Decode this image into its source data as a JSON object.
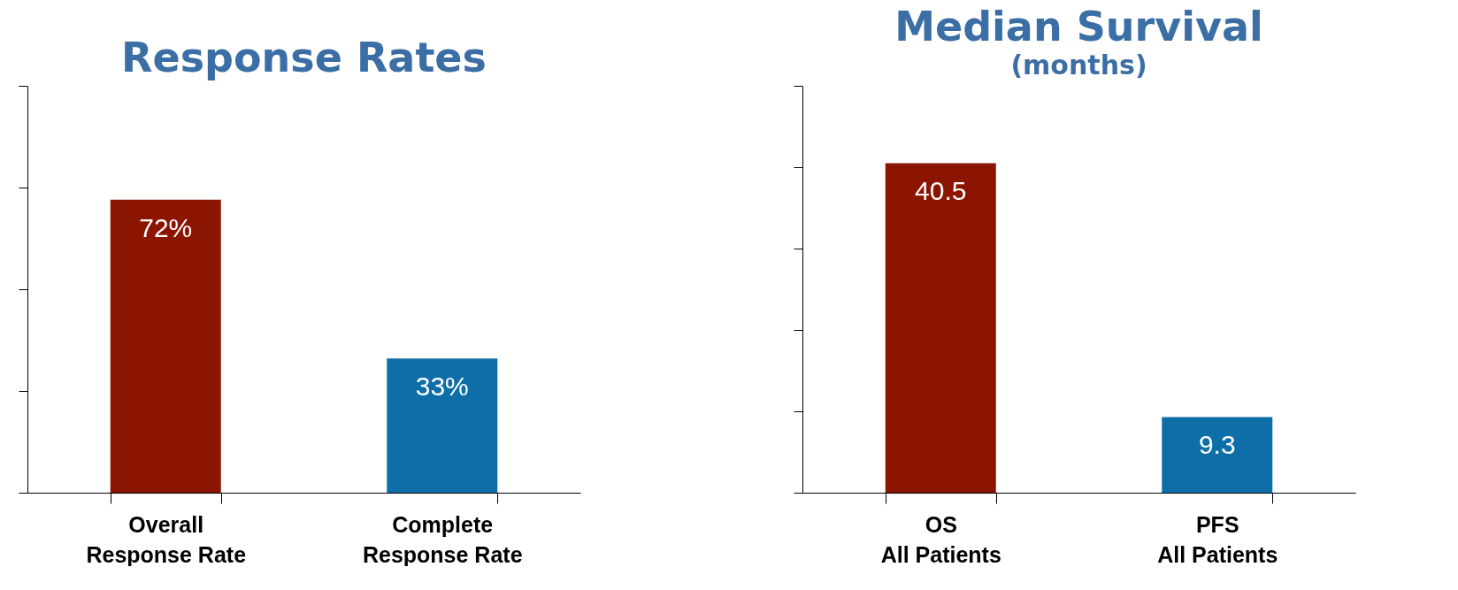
{
  "chart_data": [
    {
      "type": "bar",
      "title": "Response Rates",
      "categories": [
        "Overall\nResponse Rate",
        "Complete\nResponse Rate"
      ],
      "values": [
        72,
        33
      ],
      "colors": [
        "#8b1500",
        "#0e6fa8"
      ],
      "ylim": [
        0,
        100
      ],
      "yticks": [
        {
          "value": 0,
          "label": null
        },
        {
          "value": 25,
          "label": null
        },
        {
          "value": 50,
          "label": null
        },
        {
          "value": 75,
          "label": null
        },
        {
          "value": 100,
          "label": null
        }
      ],
      "tick_labels": "x",
      "data_labels": true,
      "value_labels": [
        "72%",
        "33%"
      ],
      "grid": false
    },
    {
      "type": "bar",
      "title": "Median Survival",
      "subtitle": "(months)",
      "categories": [
        "OS\nAll Patients",
        "PFS\nAll Patients"
      ],
      "values": [
        40.5,
        9.3
      ],
      "colors": [
        "#8b1500",
        "#0e6fa8"
      ],
      "ylim": [
        0,
        50
      ],
      "yticks": [
        {
          "value": 0,
          "label": null
        },
        {
          "value": 10,
          "label": null
        },
        {
          "value": 20,
          "label": null
        },
        {
          "value": 30,
          "label": null
        },
        {
          "value": 40,
          "label": null
        },
        {
          "value": 50,
          "label": null
        }
      ],
      "tick_labels": "x",
      "data_labels": true,
      "grid": false
    }
  ]
}
